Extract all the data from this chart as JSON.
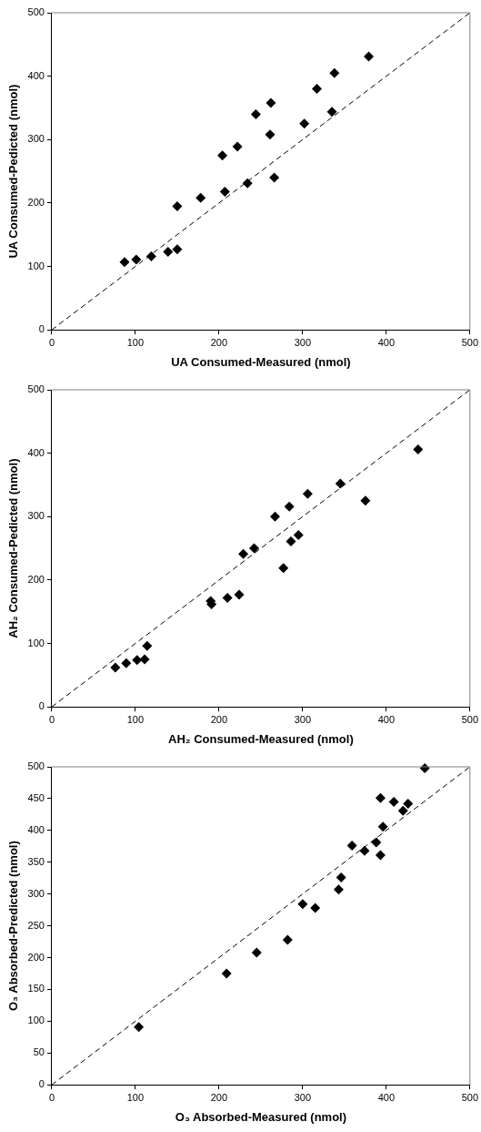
{
  "chart_data": [
    {
      "type": "scatter",
      "xlabel": "UA Consumed-Measured (nmol)",
      "ylabel": "UA Consumed-Pedicted (nmol)",
      "xlim": [
        0,
        500
      ],
      "ylim": [
        0,
        500
      ],
      "xticks": [
        0,
        100,
        200,
        300,
        400,
        500
      ],
      "yticks": [
        0,
        100,
        200,
        300,
        400,
        500
      ],
      "marker": "diamond",
      "series": [
        {
          "color": "#000000",
          "x": [
            87,
            101,
            119,
            139,
            150,
            150,
            178,
            204,
            207,
            222,
            234,
            244,
            261,
            262,
            266,
            302,
            317,
            335,
            338,
            379
          ],
          "values": [
            107,
            111,
            116,
            123,
            127,
            195,
            208,
            275,
            218,
            289,
            231,
            340,
            308,
            358,
            240,
            325,
            380,
            344,
            405,
            431
          ]
        },
        {
          "type": "line",
          "color": "#000000",
          "line_style": "dashed",
          "marker": "none",
          "x": [
            0,
            500
          ],
          "values": [
            0,
            500
          ]
        }
      ]
    },
    {
      "type": "scatter",
      "xlabel": "AH₂ Consumed-Measured (nmol)",
      "ylabel": "AH₂ Consumed-Pedicted (nmol)",
      "xlim": [
        0,
        500
      ],
      "ylim": [
        0,
        500
      ],
      "xticks": [
        0,
        100,
        200,
        300,
        400,
        500
      ],
      "yticks": [
        0,
        100,
        200,
        300,
        400,
        500
      ],
      "marker": "diamond",
      "series": [
        {
          "color": "#000000",
          "x": [
            76,
            89,
            102,
            111,
            114,
            190,
            191,
            210,
            224,
            229,
            242,
            267,
            277,
            284,
            286,
            295,
            306,
            345,
            375,
            438
          ],
          "values": [
            62,
            69,
            74,
            75,
            96,
            167,
            162,
            172,
            177,
            241,
            250,
            300,
            219,
            316,
            261,
            271,
            336,
            352,
            325,
            406
          ]
        },
        {
          "type": "line",
          "color": "#000000",
          "line_style": "dashed",
          "marker": "none",
          "x": [
            0,
            500
          ],
          "values": [
            0,
            500
          ]
        }
      ]
    },
    {
      "type": "scatter",
      "xlabel": "O₃ Absorbed-Measured (nmol)",
      "ylabel": "O₃ Absorbed-Predicted (nmol)",
      "xlim": [
        0,
        500
      ],
      "ylim": [
        0,
        500
      ],
      "xticks": [
        0,
        100,
        200,
        300,
        400,
        500
      ],
      "yticks": [
        0,
        50,
        100,
        150,
        200,
        250,
        300,
        350,
        400,
        450,
        500
      ],
      "marker": "diamond",
      "series": [
        {
          "color": "#000000",
          "x": [
            104,
            209,
            245,
            282,
            300,
            315,
            343,
            346,
            359,
            374,
            388,
            393,
            393,
            396,
            409,
            420,
            426,
            446
          ],
          "values": [
            91,
            175,
            208,
            228,
            284,
            278,
            307,
            326,
            376,
            368,
            381,
            361,
            451,
            406,
            445,
            431,
            442,
            498
          ]
        },
        {
          "type": "line",
          "color": "#000000",
          "line_style": "dashed",
          "marker": "none",
          "x": [
            0,
            500
          ],
          "values": [
            0,
            500
          ]
        }
      ]
    }
  ]
}
